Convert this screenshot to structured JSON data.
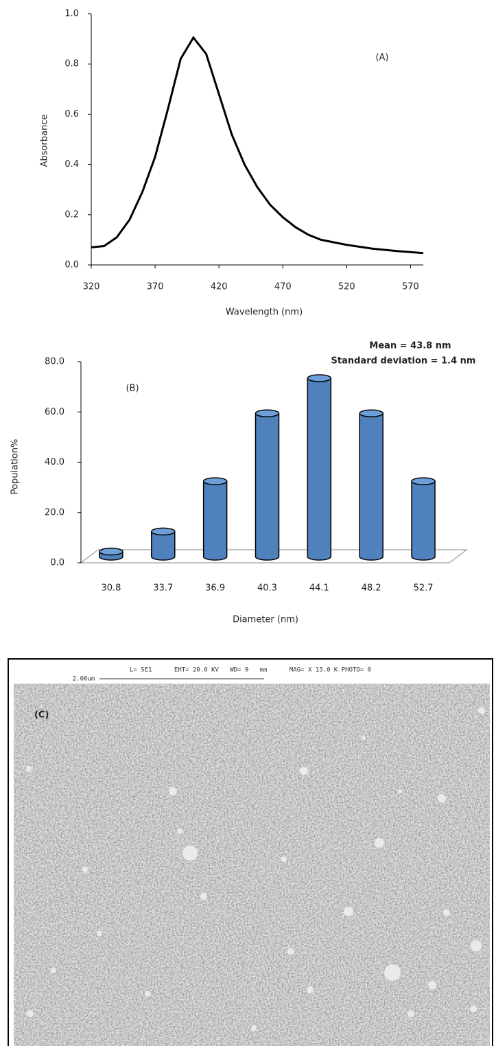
{
  "chart_data": [
    {
      "type": "line",
      "annotation": "(A)",
      "x_label": "Wavelength (nm)",
      "y_label": "Absorbance",
      "x": [
        320,
        330,
        340,
        350,
        360,
        370,
        380,
        390,
        400,
        410,
        420,
        430,
        440,
        450,
        460,
        470,
        480,
        490,
        500,
        520,
        540,
        560,
        580
      ],
      "values": [
        0.07,
        0.075,
        0.11,
        0.18,
        0.29,
        0.43,
        0.62,
        0.82,
        0.905,
        0.84,
        0.68,
        0.52,
        0.4,
        0.31,
        0.24,
        0.19,
        0.15,
        0.12,
        0.1,
        0.08,
        0.065,
        0.055,
        0.047
      ],
      "color": "#000000",
      "xlim": [
        320,
        580
      ],
      "xticks": [
        320,
        370,
        420,
        470,
        520,
        570
      ],
      "ylim": [
        0,
        1
      ],
      "yticks": [
        {
          "value": 0,
          "label": "0.0"
        },
        0.2,
        0.4,
        0.6,
        0.8,
        {
          "value": 1,
          "label": "1.0"
        }
      ]
    },
    {
      "type": "bar",
      "annotation": "(B)",
      "subtitle": "Mean = 43.8 nm",
      "subtitle2": "Standard deviation = 1.4 nm",
      "x_label": "Diameter (nm)",
      "y_label": "Population%",
      "categories": [
        "30.8",
        "33.7",
        "36.9",
        "40.3",
        "44.1",
        "48.2",
        "52.7"
      ],
      "values": [
        2,
        10,
        30,
        57,
        71,
        57,
        30
      ],
      "color": "#4f81bd",
      "ylim": [
        0,
        80
      ],
      "yticks": [
        {
          "value": 0,
          "label": "0.0"
        },
        {
          "value": 20,
          "label": "20.0"
        },
        {
          "value": 40,
          "label": "40.0"
        },
        {
          "value": 60,
          "label": "60.0"
        },
        {
          "value": 80,
          "label": "80.0"
        }
      ]
    }
  ],
  "sem_image": {
    "info": "L= SE1      EHT= 20.0 KV   WD= 9   mm      MAG= X 13.0 K PHOTO= 0",
    "scale": "2.00um",
    "label": "(C)"
  }
}
